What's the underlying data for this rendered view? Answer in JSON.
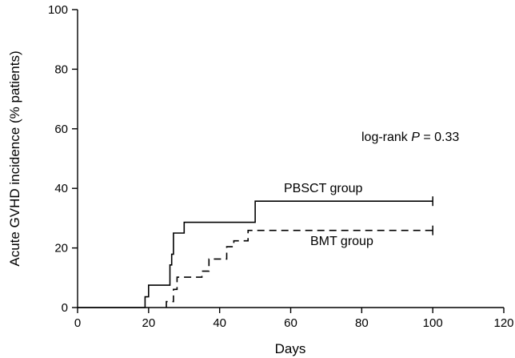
{
  "chart_data": {
    "type": "line",
    "xlabel": "Days",
    "ylabel": "Acute GVHD incidence (% patients)",
    "xlim": [
      0,
      120
    ],
    "ylim": [
      0,
      100
    ],
    "x_ticks": [
      "0",
      "20",
      "40",
      "60",
      "80",
      "100",
      "120"
    ],
    "y_ticks": [
      "0",
      "20",
      "40",
      "60",
      "80",
      "100"
    ],
    "grid": false,
    "annotation": {
      "prefix": "log-rank ",
      "p_symbol": "P",
      "suffix": " = 0.33"
    },
    "series": [
      {
        "name": "PBSCT group",
        "style": "solid",
        "steps": [
          [
            0,
            0
          ],
          [
            19,
            0
          ],
          [
            19,
            3.6
          ],
          [
            20,
            3.6
          ],
          [
            20,
            7.5
          ],
          [
            26,
            7.5
          ],
          [
            26,
            14.3
          ],
          [
            26.5,
            14.3
          ],
          [
            26.5,
            17.9
          ],
          [
            27,
            17.9
          ],
          [
            27,
            25
          ],
          [
            30,
            25
          ],
          [
            30,
            28.6
          ],
          [
            50,
            28.6
          ],
          [
            50,
            35.7
          ],
          [
            100,
            35.7
          ]
        ],
        "censor": [
          [
            100,
            35.7
          ]
        ]
      },
      {
        "name": "BMT group",
        "style": "dashed",
        "steps": [
          [
            25,
            0
          ],
          [
            25,
            2
          ],
          [
            27,
            2
          ],
          [
            27,
            6.1
          ],
          [
            28,
            6.1
          ],
          [
            28,
            10.2
          ],
          [
            35,
            10.2
          ],
          [
            35,
            12.2
          ],
          [
            37,
            12.2
          ],
          [
            37,
            16.3
          ],
          [
            42,
            16.3
          ],
          [
            42,
            20.4
          ],
          [
            44,
            20.4
          ],
          [
            44,
            22.4
          ],
          [
            48,
            22.4
          ],
          [
            48,
            25.9
          ],
          [
            100,
            25.9
          ]
        ],
        "censor": [
          [
            100,
            25.9
          ]
        ]
      }
    ]
  }
}
